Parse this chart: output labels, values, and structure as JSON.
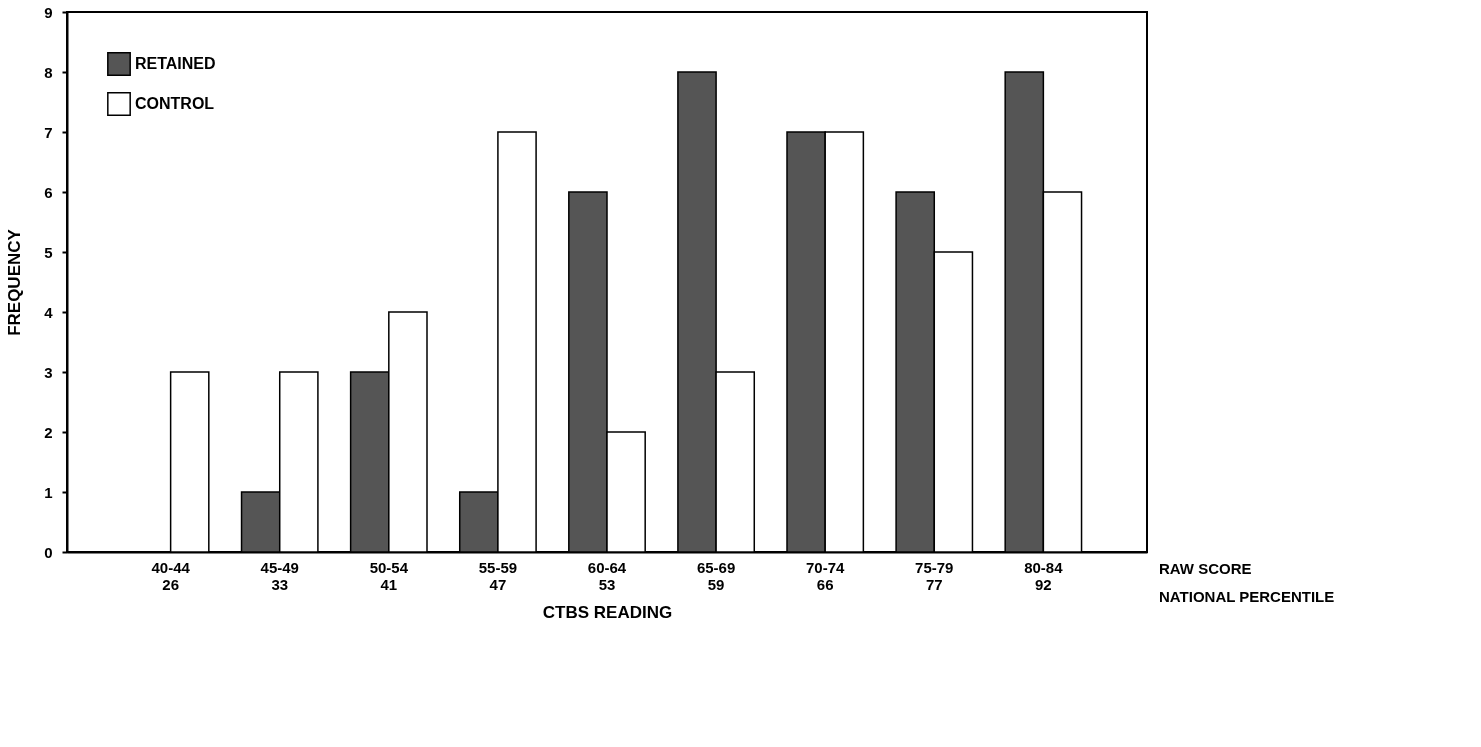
{
  "chart_data": {
    "type": "bar",
    "xlabel": "CTBS READING",
    "ylabel": "FREQUENCY",
    "categories": [
      "40-44\n26",
      "45-49\n33",
      "50-54\n41",
      "55-59\n47",
      "60-64\n53",
      "65-69\n59",
      "70-74\n66",
      "75-79\n77",
      "80-84\n92"
    ],
    "series": [
      {
        "name": "RETAINED",
        "color": "#555555",
        "values": [
          null,
          1,
          3,
          1,
          6,
          8,
          7,
          6,
          8
        ]
      },
      {
        "name": "CONTROL",
        "color": "#ffffff",
        "values": [
          3,
          3,
          4,
          7,
          2,
          3,
          7,
          5,
          6
        ]
      }
    ],
    "ylim": [
      0,
      9
    ],
    "yticks": [
      0,
      1,
      2,
      3,
      4,
      5,
      6,
      7,
      8,
      9
    ],
    "grid": false,
    "legend": "top left",
    "annotations": [
      "RAW SCORE",
      "NATIONAL PERCENTILE"
    ]
  }
}
